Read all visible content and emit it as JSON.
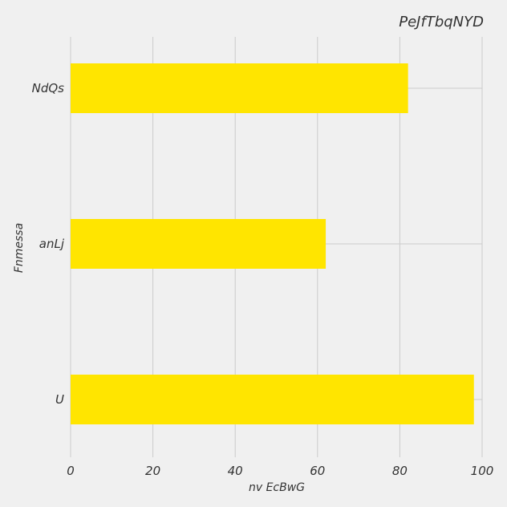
{
  "chart_data": {
    "type": "bar",
    "orientation": "horizontal",
    "title": "PeJfTbqNYD",
    "xlabel": "nv EcBwG",
    "ylabel": "Fnmessa",
    "categories": [
      "NdQs",
      "anLj",
      "U"
    ],
    "values": [
      82,
      62,
      98
    ],
    "xlim": [
      0,
      100
    ],
    "xticks": [
      0,
      20,
      40,
      60,
      80,
      100
    ],
    "grid": true,
    "bar_color": "#ffe500",
    "background_color": "#f0f0f0",
    "grid_color": "#cbcbcb"
  }
}
